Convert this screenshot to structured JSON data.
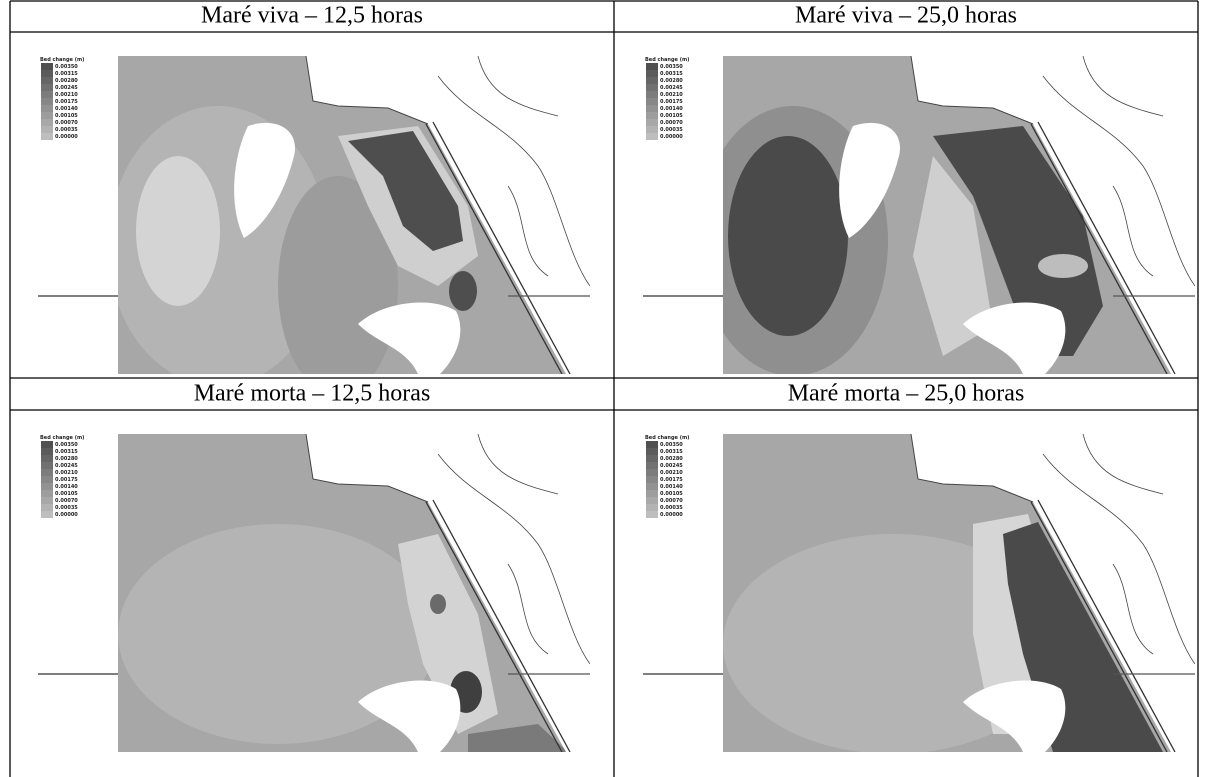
{
  "panels": [
    {
      "title": "Maré viva – 12,5 horas"
    },
    {
      "title": "Maré viva – 25,0 horas"
    },
    {
      "title": "Maré morta – 12,5 horas"
    },
    {
      "title": "Maré morta – 25,0 horas"
    }
  ],
  "legend": {
    "title": "Bed change (m)",
    "labels": [
      "0.00350",
      "0.00315",
      "0.00280",
      "0.00245",
      "0.00210",
      "0.00175",
      "0.00140",
      "0.00105",
      "0.00070",
      "0.00035",
      "0.00000"
    ]
  }
}
